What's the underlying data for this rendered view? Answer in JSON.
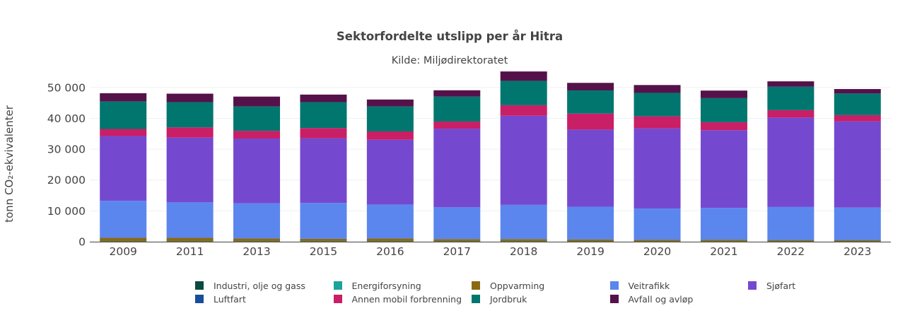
{
  "chart_data": {
    "type": "bar",
    "stacked": true,
    "title": "Sektorfordelte utslipp per år Hitra",
    "subtitle": "Kilde: Miljødirektoratet",
    "ylabel": "tonn CO₂-ekvivalenter",
    "xlabel": "",
    "ylim": [
      0,
      55000
    ],
    "yticks": [
      0,
      10000,
      20000,
      30000,
      40000,
      50000
    ],
    "ytick_labels": [
      "0",
      "10 000",
      "20 000",
      "30 000",
      "40 000",
      "50 000"
    ],
    "grid": true,
    "legend_position": "bottom",
    "categories": [
      "2009",
      "2011",
      "2013",
      "2015",
      "2016",
      "2017",
      "2018",
      "2019",
      "2020",
      "2021",
      "2022",
      "2023"
    ],
    "series": [
      {
        "name": "Industri, olje og gass",
        "color": "#0b4a3f",
        "values": [
          100,
          100,
          100,
          100,
          100,
          100,
          100,
          100,
          100,
          100,
          100,
          100
        ]
      },
      {
        "name": "Energiforsyning",
        "color": "#1ba39c",
        "values": [
          50,
          50,
          50,
          50,
          50,
          50,
          50,
          50,
          50,
          50,
          50,
          50
        ]
      },
      {
        "name": "Oppvarming",
        "color": "#8b6914",
        "values": [
          1100,
          1100,
          900,
          800,
          900,
          700,
          700,
          600,
          500,
          500,
          400,
          400
        ]
      },
      {
        "name": "Veitrafikk",
        "color": "#5b86ee",
        "values": [
          12000,
          11500,
          11400,
          11600,
          11000,
          10300,
          11100,
          10600,
          10100,
          10300,
          10700,
          10500
        ]
      },
      {
        "name": "Sjøfart",
        "color": "#7549cf",
        "values": [
          21000,
          21000,
          21000,
          21000,
          21000,
          25500,
          28900,
          25000,
          26000,
          25200,
          29000,
          28000
        ]
      },
      {
        "name": "Luftfart",
        "color": "#164e9c",
        "values": [
          0,
          0,
          0,
          0,
          0,
          0,
          0,
          0,
          0,
          0,
          0,
          0
        ]
      },
      {
        "name": "Annen mobil forbrenning",
        "color": "#c91f66",
        "values": [
          2300,
          3300,
          2500,
          3300,
          2700,
          2300,
          3400,
          5200,
          3900,
          2600,
          2400,
          2000
        ]
      },
      {
        "name": "Jordbruk",
        "color": "#00766f",
        "values": [
          8900,
          8200,
          7900,
          8400,
          8100,
          8100,
          7900,
          7500,
          7600,
          7800,
          7600,
          7000
        ]
      },
      {
        "name": "Avfall og avløp",
        "color": "#55124a",
        "values": [
          2700,
          2750,
          3200,
          2450,
          2250,
          2050,
          3050,
          2450,
          2550,
          2450,
          1750,
          1450
        ]
      }
    ]
  }
}
